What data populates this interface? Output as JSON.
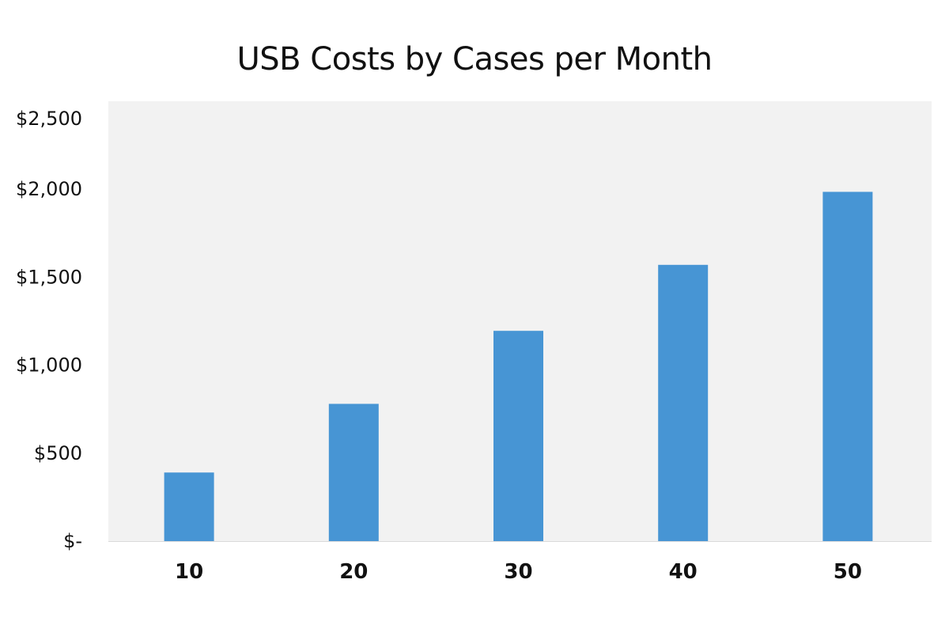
{
  "chart_data": {
    "type": "bar",
    "title": "USB Costs by Cases per Month",
    "xlabel": "",
    "ylabel": "",
    "categories": [
      "10",
      "20",
      "30",
      "40",
      "50"
    ],
    "values": [
      390,
      780,
      1195,
      1570,
      1985
    ],
    "ylim": [
      0,
      2500
    ],
    "yticks": [
      0,
      500,
      1000,
      1500,
      2000,
      2500
    ],
    "ytick_labels": [
      "$-",
      "$500",
      "$1,000",
      "$1,500",
      "$2,000",
      "$2,500"
    ],
    "grid": false,
    "legend": "none",
    "colors": {
      "bar": "#4795d4",
      "plot_background": "#f2f2f2",
      "axis_line": "#d9d9d9"
    }
  }
}
